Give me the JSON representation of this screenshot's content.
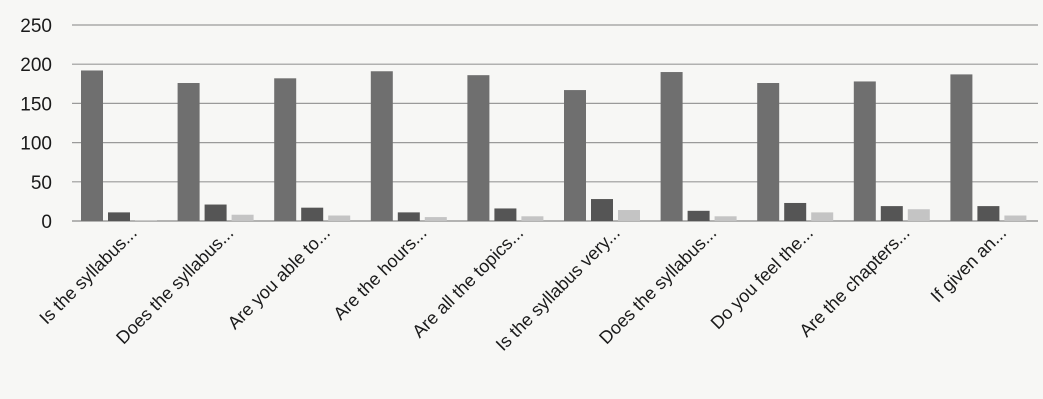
{
  "chart_data": {
    "type": "bar",
    "categories": [
      "Is the syllabus...",
      "Does the syllabus...",
      "Are you able to...",
      "Are the hours...",
      "Are all the topics...",
      "Is the syllabus very...",
      "Does the syllabus...",
      "Do you feel the...",
      "Are the chapters...",
      "If given an..."
    ],
    "series": [
      {
        "values": [
          192,
          176,
          182,
          191,
          186,
          167,
          190,
          176,
          178,
          187
        ]
      },
      {
        "values": [
          11,
          21,
          17,
          11,
          16,
          28,
          13,
          23,
          19,
          19
        ]
      },
      {
        "values": [
          1,
          8,
          7,
          5,
          6,
          14,
          6,
          11,
          15,
          7
        ]
      }
    ],
    "colors": [
      "#6f6f6f",
      "#555555",
      "#c4c4c4"
    ],
    "ylim": [
      0,
      250
    ],
    "yticks": [
      0,
      50,
      100,
      150,
      200,
      250
    ],
    "grid": true,
    "title": "",
    "xlabel": "",
    "ylabel": ""
  }
}
